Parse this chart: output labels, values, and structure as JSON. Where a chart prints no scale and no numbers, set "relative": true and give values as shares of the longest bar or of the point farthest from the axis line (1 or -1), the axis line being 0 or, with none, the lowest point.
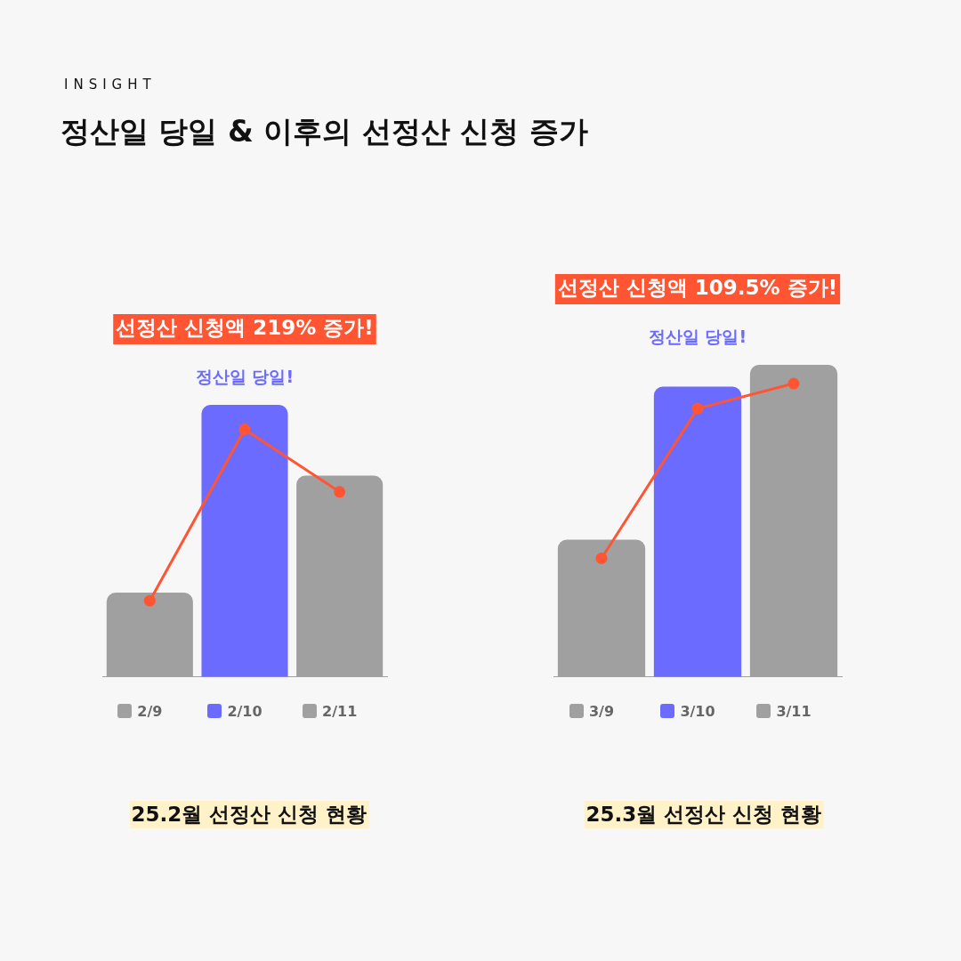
{
  "chart_data": [
    {
      "type": "other",
      "subtitle": "INSIGHT",
      "title": "정산일 당일 & 이후의 선정산 신청 증가"
    },
    {
      "type": "bar",
      "relative": true,
      "title": "25.2월 선정산 신청 현황",
      "categories": [
        "2/9",
        "2/10",
        "2/11"
      ],
      "grid": false,
      "marker": "circle",
      "series": [
        {
          "type": "bar",
          "colors": [
            "#a0a0a0",
            "#6b6bff",
            "#a0a0a0"
          ],
          "values": [
            0.31,
            1,
            0.74
          ]
        },
        {
          "type": "line",
          "color": "#ff5533",
          "values": [
            0.28,
            0.91,
            0.68
          ]
        }
      ],
      "annotations": [
        "선정산 신청액 219% 증가!",
        "정산일 당일!"
      ]
    },
    {
      "type": "bar",
      "relative": true,
      "title": "25.3월 선정산 신청 현황",
      "categories": [
        "3/9",
        "3/10",
        "3/11"
      ],
      "grid": false,
      "marker": "circle",
      "series": [
        {
          "type": "bar",
          "colors": [
            "#a0a0a0",
            "#6b6bff",
            "#a0a0a0"
          ],
          "values": [
            0.44,
            0.93,
            1
          ]
        },
        {
          "type": "line",
          "color": "#ff5533",
          "values": [
            0.38,
            0.86,
            0.94
          ]
        }
      ],
      "annotations": [
        "선정산 신청액 109.5% 증가!",
        "정산일 당일!"
      ]
    }
  ]
}
